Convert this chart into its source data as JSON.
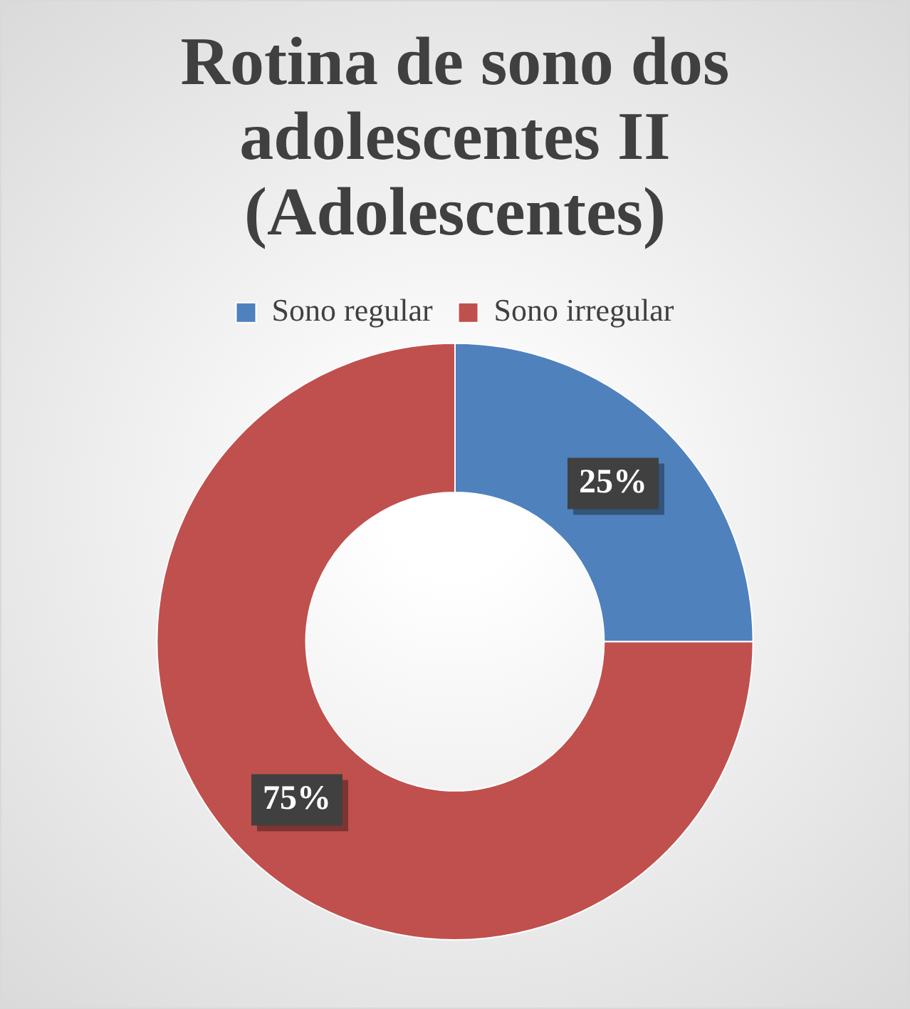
{
  "chart_data": {
    "type": "donut",
    "title": "Rotina de sono dos adolescentes II (Adolescentes)",
    "categories": [
      "Sono regular",
      "Sono irregular"
    ],
    "values": [
      25,
      75
    ],
    "colors": [
      "#4f81bd",
      "#c0504d"
    ],
    "value_labels": [
      "25%",
      "75%"
    ],
    "legend": "top"
  }
}
